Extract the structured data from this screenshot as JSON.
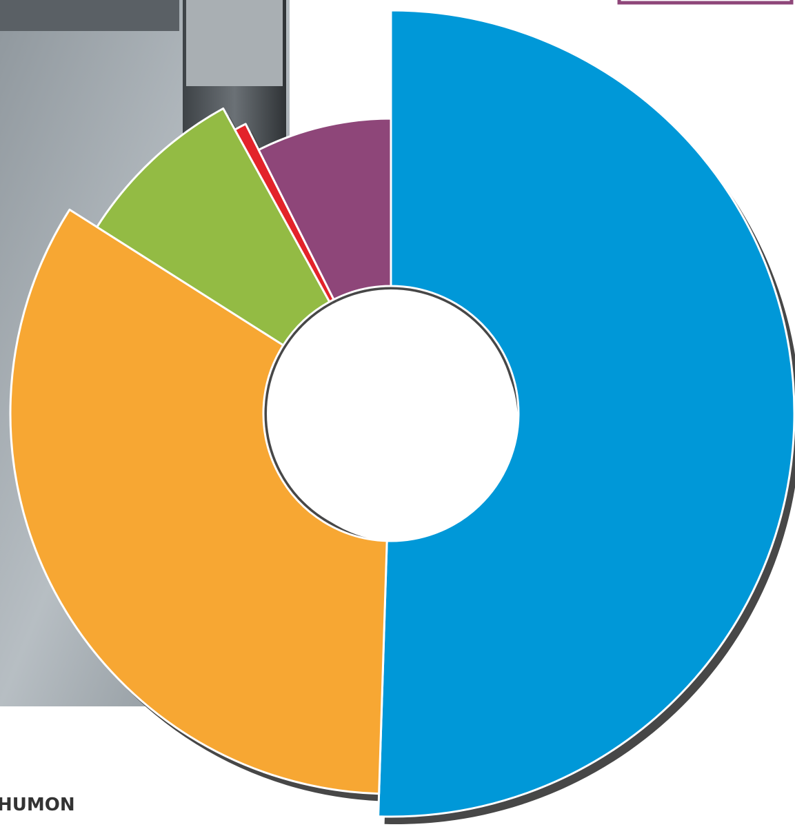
{
  "chart_data": {
    "type": "donut",
    "values": [
      50.5,
      33.5,
      8,
      0.6,
      7.4
    ],
    "colors": [
      "#0098d8",
      "#f7a733",
      "#93bb44",
      "#e3232a",
      "#8e4679"
    ],
    "annotations": [
      "HUMON"
    ]
  }
}
